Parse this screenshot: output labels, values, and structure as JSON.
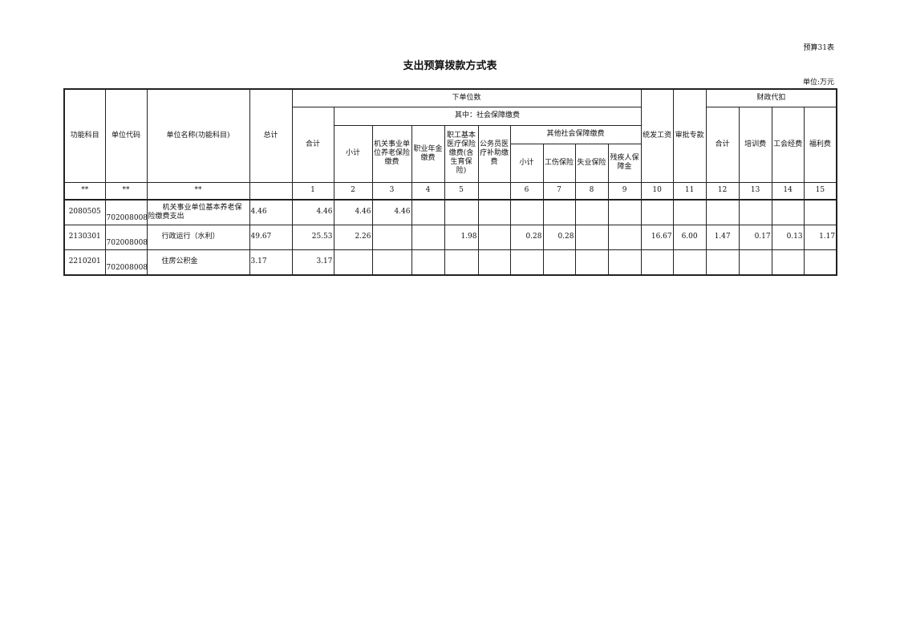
{
  "table_tag": "预算31表",
  "title": "支出预算拨款方式表",
  "unit": "单位:万元",
  "headers": {
    "func": "功能科目",
    "code": "单位代码",
    "name": "单位名称(功能科目)",
    "total": "总计",
    "lower": "下单位数",
    "lower_total": "合计",
    "social": "其中：社会保障缴费",
    "sub": "小计",
    "pension": "机关事业单位养老保险缴费",
    "annuity": "职业年金缴费",
    "medical": "职工基本医疗保险缴费(含生育保险)",
    "civil": "公务员医疗补助缴费",
    "other": "其他社会保障缴费",
    "other_sub": "小计",
    "injury": "工伤保险",
    "unemp": "失业保险",
    "disab": "残疾人保障金",
    "salary": "统发工资",
    "special": "审批专款",
    "fiscal": "财政代扣",
    "f_total": "合计",
    "training": "培训费",
    "union": "工会经费",
    "welfare": "福利费"
  },
  "numbers": [
    "**",
    "**",
    "**",
    "",
    "1",
    "2",
    "3",
    "4",
    "5",
    "",
    "6",
    "7",
    "8",
    "9",
    "10",
    "11",
    "12",
    "13",
    "14",
    "15"
  ],
  "rows": [
    [
      "2080505",
      "702008008",
      "机关事业单位基本养老保险缴费支出",
      "4.46",
      "4.46",
      "4.46",
      "4.46",
      "",
      "",
      "",
      "",
      "",
      "",
      "",
      "",
      "",
      "",
      "",
      "",
      ""
    ],
    [
      "2130301",
      "702008008",
      "行政运行（水利）",
      "49.67",
      "25.53",
      "2.26",
      "",
      "",
      "1.98",
      "",
      "0.28",
      "0.28",
      "",
      "",
      "16.67",
      "6.00",
      "1.47",
      "0.17",
      "0.13",
      "1.17"
    ],
    [
      "2210201",
      "702008008",
      "住房公积金",
      "3.17",
      "3.17",
      "",
      "",
      "",
      "",
      "",
      "",
      "",
      "",
      "",
      "",
      "",
      "",
      "",
      "",
      ""
    ]
  ]
}
